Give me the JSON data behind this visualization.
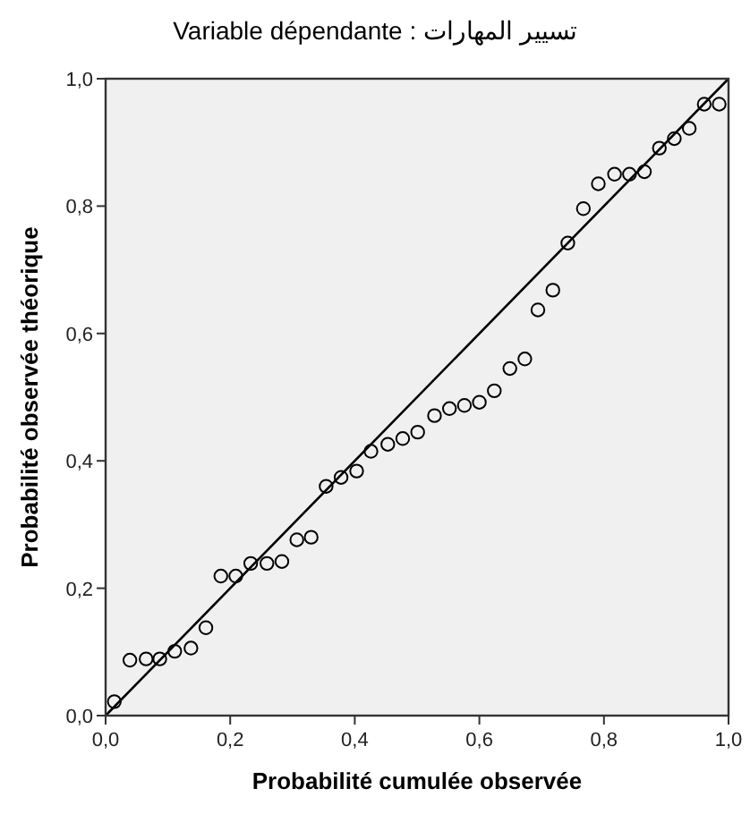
{
  "chart_data": {
    "type": "scatter",
    "title": "Variable dépendante : تسيير المهارات",
    "xlabel": "Probabilité cumulée observée",
    "ylabel": "Probabilité observée théorique",
    "xlim": [
      0,
      1
    ],
    "ylim": [
      0,
      1
    ],
    "xticks": [
      {
        "value": 0,
        "label": "0,0"
      },
      {
        "value": 0.2,
        "label": "0,2"
      },
      {
        "value": 0.4,
        "label": "0,4"
      },
      {
        "value": 0.6,
        "label": "0,6"
      },
      {
        "value": 0.8,
        "label": "0,8"
      },
      {
        "value": 1,
        "label": "1,0"
      }
    ],
    "yticks": [
      {
        "value": 0,
        "label": "0,0"
      },
      {
        "value": 0.2,
        "label": "0,2"
      },
      {
        "value": 0.4,
        "label": "0,4"
      },
      {
        "value": 0.6,
        "label": "0,6"
      },
      {
        "value": 0.8,
        "label": "0,8"
      },
      {
        "value": 1,
        "label": "1,0"
      }
    ],
    "marker": "circle",
    "grid": false,
    "series": [
      {
        "color": "#000000",
        "x": [
          0.014,
          0.039,
          0.065,
          0.087,
          0.111,
          0.137,
          0.161,
          0.185,
          0.209,
          0.233,
          0.259,
          0.283,
          0.307,
          0.33,
          0.354,
          0.378,
          0.403,
          0.426,
          0.453,
          0.477,
          0.501,
          0.528,
          0.552,
          0.576,
          0.6,
          0.624,
          0.649,
          0.673,
          0.694,
          0.718,
          0.742,
          0.767,
          0.791,
          0.817,
          0.841,
          0.865,
          0.889,
          0.913,
          0.937,
          0.961,
          0.985
        ],
        "values": [
          0.022,
          0.087,
          0.089,
          0.089,
          0.101,
          0.106,
          0.138,
          0.219,
          0.219,
          0.239,
          0.239,
          0.242,
          0.276,
          0.28,
          0.36,
          0.374,
          0.384,
          0.415,
          0.426,
          0.435,
          0.445,
          0.471,
          0.482,
          0.487,
          0.492,
          0.51,
          0.545,
          0.56,
          0.637,
          0.668,
          0.742,
          0.796,
          0.835,
          0.85,
          0.85,
          0.854,
          0.891,
          0.906,
          0.922,
          0.96,
          0.96
        ]
      },
      {
        "type": "line",
        "color": "#000000",
        "marker": "none",
        "x": [
          0,
          1
        ],
        "values": [
          0,
          1
        ]
      }
    ]
  }
}
